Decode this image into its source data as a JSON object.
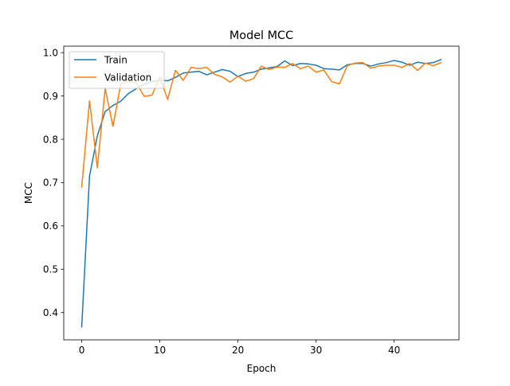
{
  "chart_data": {
    "type": "line",
    "title": "Model MCC",
    "xlabel": "Epoch",
    "ylabel": "MCC",
    "xlim": [
      -2.3,
      48.3
    ],
    "ylim": [
      0.337,
      1.015
    ],
    "xticks": [
      0,
      10,
      20,
      30,
      40
    ],
    "yticks": [
      0.4,
      0.5,
      0.6,
      0.7,
      0.8,
      0.9,
      1.0
    ],
    "xtick_labels": [
      "0",
      "10",
      "20",
      "30",
      "40"
    ],
    "ytick_labels": [
      "0.4",
      "0.5",
      "0.6",
      "0.7",
      "0.8",
      "0.9",
      "1.0"
    ],
    "grid": false,
    "legend_position": "upper left",
    "x": [
      0,
      1,
      2,
      3,
      4,
      5,
      6,
      7,
      8,
      9,
      10,
      11,
      12,
      13,
      14,
      15,
      16,
      17,
      18,
      19,
      20,
      21,
      22,
      23,
      24,
      25,
      26,
      27,
      28,
      29,
      30,
      31,
      32,
      33,
      34,
      35,
      36,
      37,
      38,
      39,
      40,
      41,
      42,
      43,
      44,
      45,
      46
    ],
    "series": [
      {
        "name": "Train",
        "color": "#1f77b4",
        "values": [
          0.367,
          0.715,
          0.808,
          0.864,
          0.878,
          0.888,
          0.906,
          0.917,
          0.927,
          0.933,
          0.937,
          0.935,
          0.943,
          0.953,
          0.955,
          0.957,
          0.949,
          0.955,
          0.961,
          0.957,
          0.945,
          0.952,
          0.955,
          0.962,
          0.965,
          0.968,
          0.981,
          0.97,
          0.975,
          0.974,
          0.971,
          0.963,
          0.962,
          0.96,
          0.972,
          0.975,
          0.975,
          0.969,
          0.974,
          0.977,
          0.982,
          0.978,
          0.971,
          0.978,
          0.975,
          0.977,
          0.984
        ]
      },
      {
        "name": "Validation",
        "color": "#ff7f0e",
        "values": [
          0.69,
          0.889,
          0.734,
          0.917,
          0.83,
          0.928,
          0.933,
          0.93,
          0.899,
          0.902,
          0.944,
          0.892,
          0.959,
          0.936,
          0.966,
          0.963,
          0.966,
          0.95,
          0.944,
          0.932,
          0.946,
          0.934,
          0.94,
          0.969,
          0.961,
          0.967,
          0.966,
          0.975,
          0.963,
          0.969,
          0.955,
          0.96,
          0.933,
          0.928,
          0.97,
          0.976,
          0.977,
          0.964,
          0.969,
          0.971,
          0.971,
          0.966,
          0.975,
          0.959,
          0.976,
          0.97,
          0.977
        ]
      }
    ]
  }
}
